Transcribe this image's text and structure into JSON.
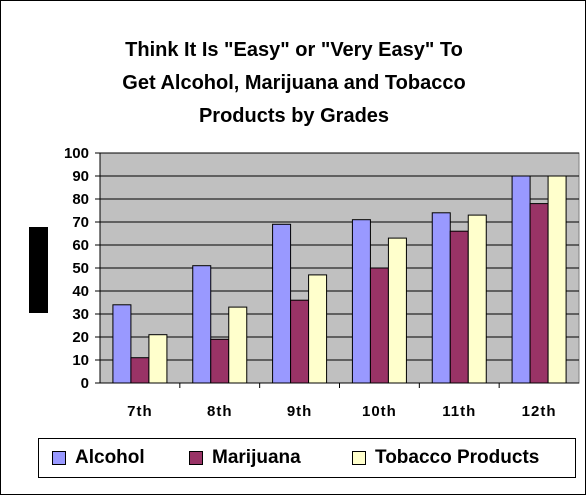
{
  "chart_data": {
    "type": "bar",
    "title_lines": [
      "Think It Is \"Easy\" or \"Very Easy\" To",
      "Get Alcohol, Marijuana and Tobacco",
      "Products by Grades"
    ],
    "categories": [
      "7th",
      "8th",
      "9th",
      "10th",
      "11th",
      "12th"
    ],
    "category_labels": [
      "7th",
      "8th",
      "9th",
      "10th",
      "11th",
      "12th"
    ],
    "series": [
      {
        "name": "Alcohol",
        "color": "#9999ff",
        "values": [
          34,
          51,
          69,
          71,
          74,
          90
        ]
      },
      {
        "name": "Marijuana",
        "color": "#993366",
        "values": [
          11,
          19,
          36,
          50,
          66,
          78
        ]
      },
      {
        "name": "Tobacco Products",
        "color": "#ffffcc",
        "values": [
          21,
          33,
          47,
          63,
          73,
          90
        ]
      }
    ],
    "ylim": [
      0,
      100
    ],
    "yticks": [
      0,
      10,
      20,
      30,
      40,
      50,
      60,
      70,
      80,
      90,
      100
    ],
    "xlabel": "",
    "ylabel": "",
    "grid": true,
    "plot_background": "#c0c0c0",
    "legend_position": "bottom"
  }
}
